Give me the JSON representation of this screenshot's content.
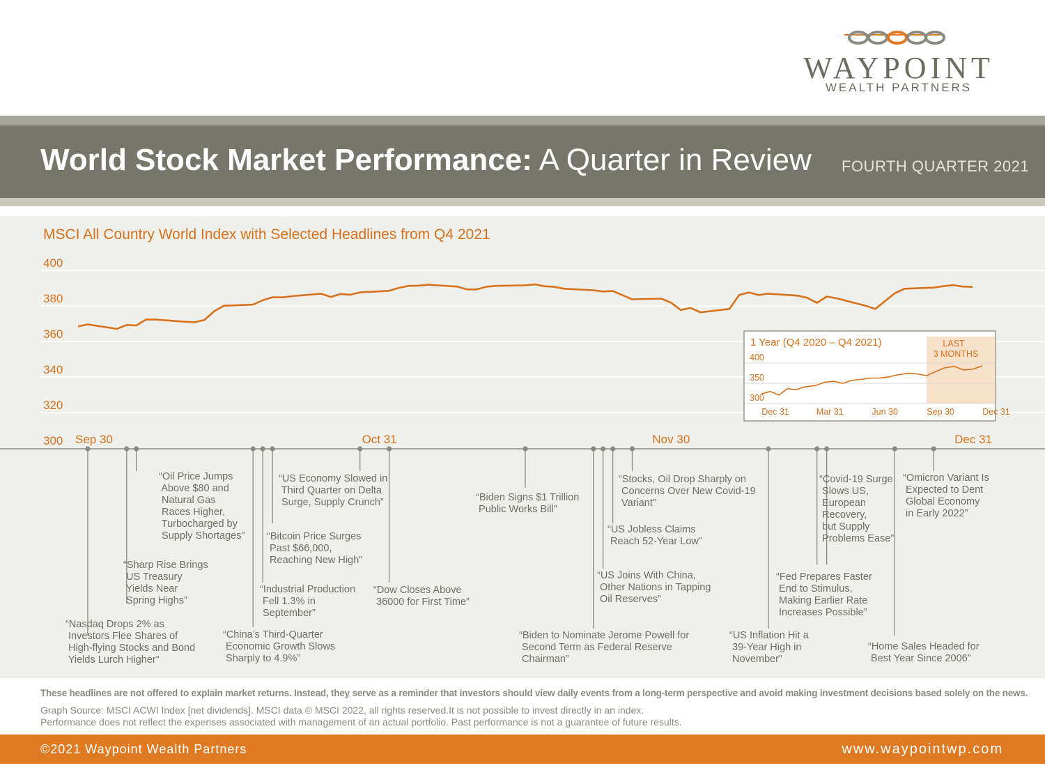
{
  "brand": {
    "name": "WAYPOINT",
    "sub": "WEALTH PARTNERS"
  },
  "banner": {
    "title_bold": "World Stock Market Performance:",
    "title_light": "A Quarter in Review",
    "quarter": "FOURTH QUARTER 2021"
  },
  "colors": {
    "accent": "#df7a22",
    "line": "#d8711c",
    "banner": "#76766a",
    "panel": "#efefec",
    "text_gray": "#6e6e64"
  },
  "chart_data": [
    {
      "type": "line",
      "title": "MSCI All Country World Index with Selected Headlines from Q4 2021",
      "ylim": [
        300,
        400
      ],
      "yticks": [
        300,
        320,
        340,
        360,
        380,
        400
      ],
      "xticks": [
        "Sep 30",
        "Oct 31",
        "Nov 30",
        "Dec 31"
      ],
      "xlim": [
        "2021-09-30",
        "2021-12-31"
      ],
      "grid": true,
      "series": [
        {
          "x": [
            "2021-09-30",
            "2021-10-01",
            "2021-10-04",
            "2021-10-05",
            "2021-10-06",
            "2021-10-07",
            "2021-10-08",
            "2021-10-11",
            "2021-10-12",
            "2021-10-13",
            "2021-10-14",
            "2021-10-15",
            "2021-10-18",
            "2021-10-19",
            "2021-10-20",
            "2021-10-21",
            "2021-10-22",
            "2021-10-25",
            "2021-10-26",
            "2021-10-27",
            "2021-10-28",
            "2021-10-29",
            "2021-11-01",
            "2021-11-02",
            "2021-11-03",
            "2021-11-04",
            "2021-11-05",
            "2021-11-08",
            "2021-11-09",
            "2021-11-10",
            "2021-11-11",
            "2021-11-12",
            "2021-11-15",
            "2021-11-16",
            "2021-11-17",
            "2021-11-18",
            "2021-11-19",
            "2021-11-22",
            "2021-11-23",
            "2021-11-24",
            "2021-11-26",
            "2021-11-29",
            "2021-11-30",
            "2021-12-01",
            "2021-12-02",
            "2021-12-03",
            "2021-12-06",
            "2021-12-07",
            "2021-12-08",
            "2021-12-09",
            "2021-12-10",
            "2021-12-13",
            "2021-12-14",
            "2021-12-15",
            "2021-12-16",
            "2021-12-17",
            "2021-12-20",
            "2021-12-21",
            "2021-12-22",
            "2021-12-23",
            "2021-12-24",
            "2021-12-27",
            "2021-12-28",
            "2021-12-29",
            "2021-12-30",
            "2021-12-31"
          ],
          "y": [
            363.8,
            364.9,
            362.4,
            364.6,
            364.3,
            367.7,
            367.6,
            366.4,
            366.1,
            367.4,
            372.3,
            375.4,
            376.0,
            378.5,
            380.2,
            380.1,
            380.8,
            382.2,
            380.3,
            382.0,
            381.6,
            382.9,
            383.8,
            385.5,
            386.6,
            386.7,
            387.2,
            386.2,
            384.6,
            384.6,
            386.1,
            386.6,
            386.9,
            387.4,
            386.4,
            386.0,
            385.0,
            384.1,
            383.4,
            383.7,
            379.0,
            379.4,
            377.1,
            373.0,
            374.2,
            371.7,
            373.6,
            381.5,
            382.9,
            381.4,
            382.2,
            381.1,
            379.9,
            377.0,
            380.6,
            379.6,
            375.4,
            373.6,
            378.0,
            382.4,
            385.0,
            385.6,
            386.4,
            387.0,
            386.2,
            386.0
          ]
        }
      ]
    },
    {
      "type": "line",
      "title": "1 Year (Q4 2020 – Q4 2021)",
      "ylim": [
        300,
        400
      ],
      "yticks": [
        300,
        350,
        400
      ],
      "xticks": [
        "Dec 31",
        "Mar 31",
        "Jun 30",
        "Sep 30",
        "Dec 31"
      ],
      "xlim": [
        "2020-12-31",
        "2021-12-31"
      ],
      "highlight": {
        "label": "LAST 3 MONTHS",
        "from": "2021-09-30",
        "to": "2021-12-31"
      },
      "series": [
        {
          "x": [
            "2020-12-31",
            "2021-01-15",
            "2021-01-29",
            "2021-02-12",
            "2021-02-26",
            "2021-03-12",
            "2021-03-31",
            "2021-04-15",
            "2021-04-30",
            "2021-05-14",
            "2021-05-28",
            "2021-06-15",
            "2021-06-30",
            "2021-07-15",
            "2021-07-30",
            "2021-08-13",
            "2021-08-31",
            "2021-09-15",
            "2021-09-30",
            "2021-10-15",
            "2021-10-29",
            "2021-11-15",
            "2021-11-30",
            "2021-12-15",
            "2021-12-31"
          ],
          "y": [
            317,
            323,
            314,
            330,
            327,
            334,
            338,
            346,
            348,
            343,
            350,
            353,
            356,
            356,
            359,
            364,
            368,
            366,
            362,
            372,
            381,
            385,
            376,
            378,
            386
          ]
        }
      ]
    }
  ],
  "timeline": {
    "dates": [
      "Sep 30",
      "Oct 31",
      "Nov 30",
      "Dec 31"
    ],
    "headlines": [
      {
        "date": "2021-10-01",
        "lines": [
          "“Nasdaq Drops 2% as",
          " Investors Flee Shares of",
          " High-flying Stocks and Bond",
          " Yields Lurch Higher”"
        ]
      },
      {
        "date": "2021-10-05",
        "lines": [
          "“Sharp Rise Brings",
          " US Treasury",
          " Yields Near",
          " Spring Highs”"
        ]
      },
      {
        "date": "2021-10-06",
        "lines": [
          "“Oil Price Jumps",
          " Above $80 and",
          " Natural Gas",
          " Races Higher,",
          " Turbocharged by",
          " Supply Shortages”"
        ]
      },
      {
        "date": "2021-10-18",
        "lines": [
          "“China’s Third-Quarter",
          " Economic Growth Slows",
          " Sharply to 4.9%”"
        ]
      },
      {
        "date": "2021-10-19",
        "lines": [
          "“Industrial Production",
          " Fell 1.3% in",
          " September”"
        ]
      },
      {
        "date": "2021-10-20",
        "lines": [
          "“Bitcoin Price Surges",
          " Past $66,000,",
          " Reaching New High”"
        ]
      },
      {
        "date": "2021-10-29",
        "lines": [
          "“US Economy Slowed in",
          " Third Quarter on Delta",
          " Surge, Supply Crunch”"
        ]
      },
      {
        "date": "2021-11-01",
        "lines": [
          "“Dow Closes Above",
          " 36000 for First Time”"
        ]
      },
      {
        "date": "2021-11-15",
        "lines": [
          "“Biden Signs $1 Trillion",
          " Public Works Bill”"
        ]
      },
      {
        "date": "2021-11-22",
        "lines": [
          "“Biden to Nominate Jerome Powell for",
          " Second Term as Federal Reserve",
          " Chairman”"
        ]
      },
      {
        "date": "2021-11-23",
        "lines": [
          "“US Joins With China,",
          " Other Nations in Tapping",
          " Oil Reserves”"
        ]
      },
      {
        "date": "2021-11-24",
        "lines": [
          "“US Jobless Claims",
          " Reach 52-Year Low”"
        ]
      },
      {
        "date": "2021-11-26",
        "lines": [
          "“Stocks, Oil Drop Sharply on",
          " Concerns Over New Covid-19",
          " Variant”"
        ]
      },
      {
        "date": "2021-12-10",
        "lines": [
          "“US Inflation Hit a",
          " 39-Year High in",
          " November”"
        ]
      },
      {
        "date": "2021-12-15",
        "lines": [
          "“Fed Prepares Faster",
          " End to Stimulus,",
          " Making Earlier Rate",
          " Increases Possible”"
        ]
      },
      {
        "date": "2021-12-16",
        "lines": [
          "“Covid-19 Surge",
          " Slows US,",
          " European",
          " Recovery,",
          " but Supply",
          " Problems Ease”"
        ]
      },
      {
        "date": "2021-12-23",
        "lines": [
          "“Home Sales Headed for",
          " Best Year Since 2006”"
        ]
      },
      {
        "date": "2021-12-27",
        "lines": [
          "“Omicron Variant Is",
          " Expected to Dent",
          " Global Economy",
          " in Early 2022”"
        ]
      }
    ]
  },
  "footer": {
    "note": "These headlines are not offered to explain market returns. Instead, they serve as a reminder that investors should view daily events from a long-term perspective and avoid making investment decisions based solely on the news.",
    "source": "Graph Source: MSCI ACWI Index [net dividends]. MSCI data © MSCI 2022, all rights reserved.It is not possible to invest directly in an index.",
    "disclaimer": "Performance does not reflect the expenses associated with management of an actual portfolio. Past performance is not a guarantee of future results.",
    "copyright": "©2021 Waypoint Wealth Partners",
    "url": "www.waypointwp.com"
  }
}
